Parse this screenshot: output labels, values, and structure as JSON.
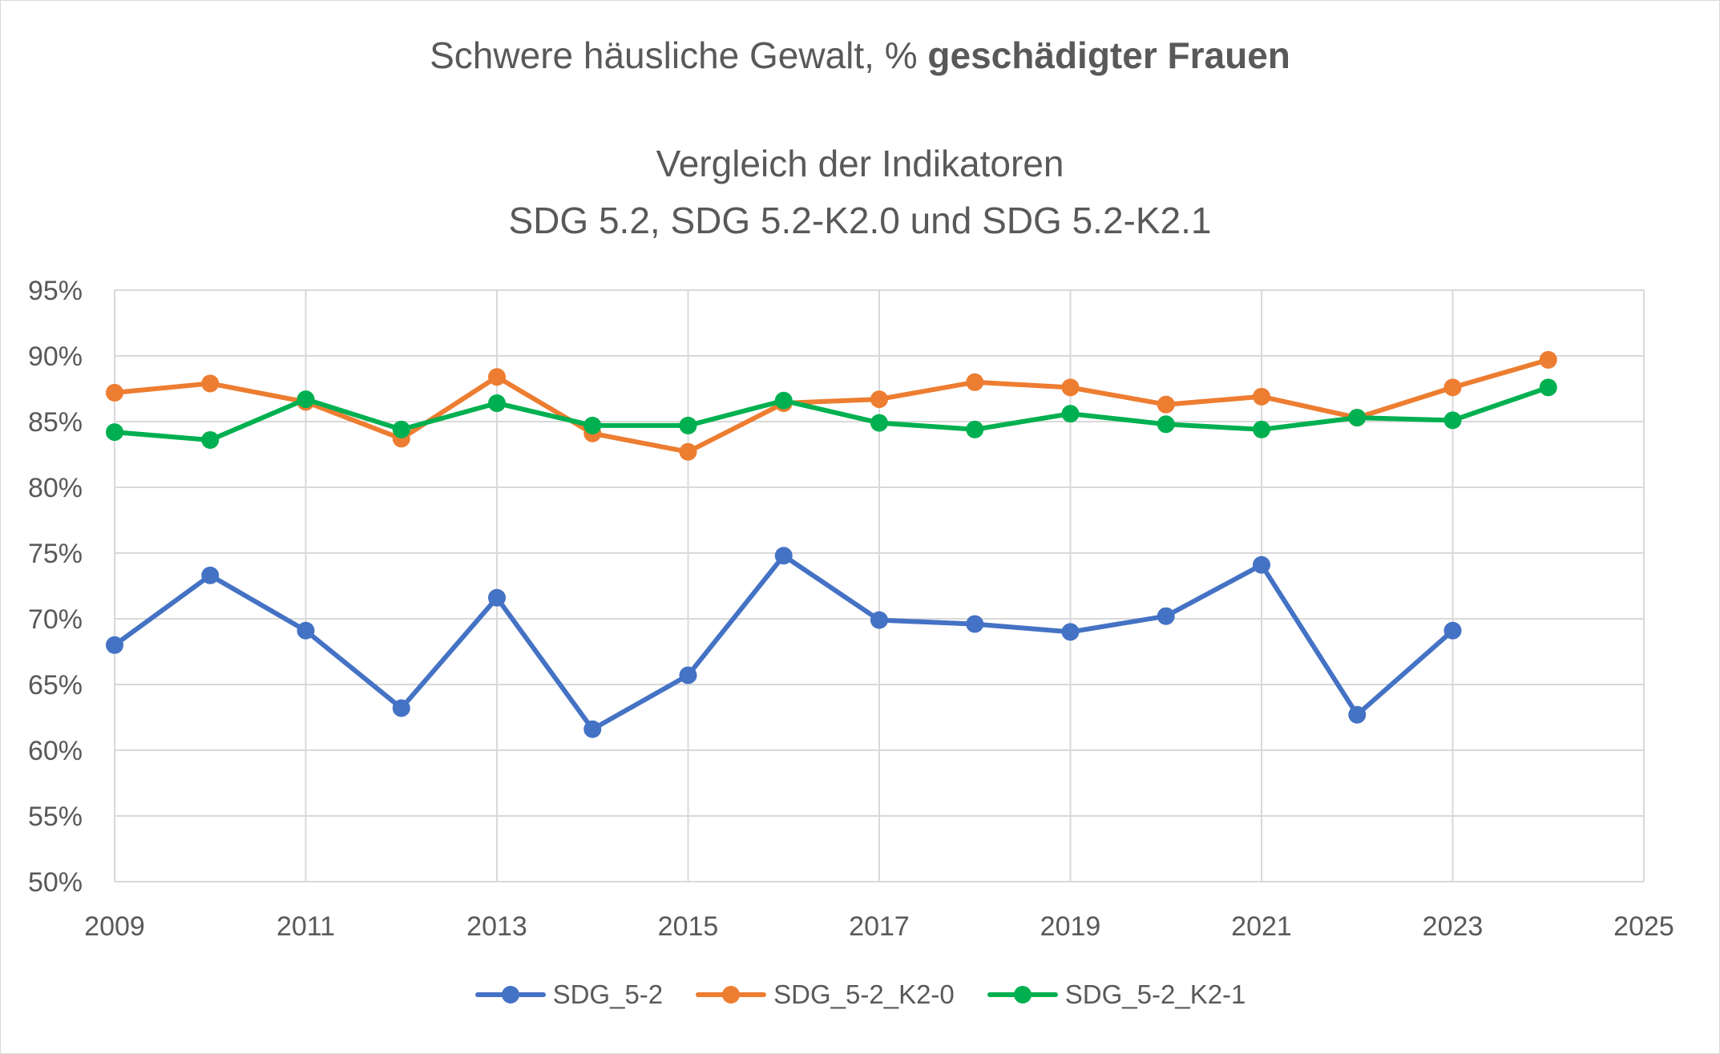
{
  "chart_data": {
    "type": "line",
    "title": "Schwere häusliche Gewalt, % geschädigter Frauen",
    "title_parts": [
      "Schwere häusliche Gewalt, % ",
      "geschädigter Frauen"
    ],
    "subtitle_lines": [
      "Vergleich der Indikatoren",
      "SDG 5.2, SDG 5.2-K2.0 und SDG 5.2-K2.1"
    ],
    "xlabel": "",
    "ylabel": "",
    "xlim": [
      2009,
      2025
    ],
    "ylim": [
      50,
      95
    ],
    "x_ticks": [
      2009,
      2011,
      2013,
      2015,
      2017,
      2019,
      2021,
      2023,
      2025
    ],
    "x_tick_labels": [
      "2009",
      "2011",
      "2013",
      "2015",
      "2017",
      "2019",
      "2021",
      "2023",
      "2025"
    ],
    "y_ticks": [
      50,
      55,
      60,
      65,
      70,
      75,
      80,
      85,
      90,
      95
    ],
    "y_tick_labels": [
      "50%",
      "55%",
      "60%",
      "65%",
      "70%",
      "75%",
      "80%",
      "85%",
      "90%",
      "95%"
    ],
    "grid": true,
    "legend_position": "bottom",
    "series": [
      {
        "name": "SDG_5-2",
        "color": "#4472c4",
        "x": [
          2009,
          2010,
          2011,
          2012,
          2013,
          2014,
          2015,
          2016,
          2017,
          2018,
          2019,
          2020,
          2021,
          2022,
          2023
        ],
        "y": [
          68.0,
          73.3,
          69.1,
          63.2,
          71.6,
          61.6,
          65.7,
          74.8,
          69.9,
          69.6,
          69.0,
          70.2,
          74.1,
          62.7,
          69.1
        ]
      },
      {
        "name": "SDG_5-2_K2-0",
        "color": "#ed7d31",
        "x": [
          2009,
          2010,
          2011,
          2012,
          2013,
          2014,
          2015,
          2016,
          2017,
          2018,
          2019,
          2020,
          2021,
          2022,
          2023,
          2024
        ],
        "y": [
          87.2,
          87.9,
          86.5,
          83.7,
          88.4,
          84.1,
          82.7,
          86.4,
          86.7,
          88.0,
          87.6,
          86.3,
          86.9,
          85.3,
          87.6,
          89.7
        ]
      },
      {
        "name": "SDG_5-2_K2-1",
        "color": "#00b050",
        "x": [
          2009,
          2010,
          2011,
          2012,
          2013,
          2014,
          2015,
          2016,
          2017,
          2018,
          2019,
          2020,
          2021,
          2022,
          2023,
          2024
        ],
        "y": [
          84.2,
          83.6,
          86.7,
          84.4,
          86.4,
          84.7,
          84.7,
          86.6,
          84.9,
          84.4,
          85.6,
          84.8,
          84.4,
          85.3,
          85.1,
          87.6
        ]
      }
    ]
  }
}
